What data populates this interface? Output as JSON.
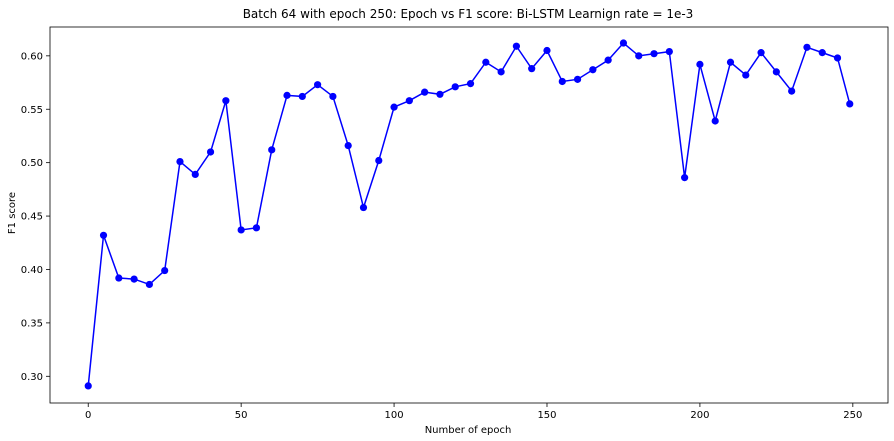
{
  "chart_data": {
    "type": "line",
    "title": "Batch 64 with epoch 250: Epoch vs F1 score: Bi-LSTM Learnign rate = 1e-3",
    "xlabel": "Number of epoch",
    "ylabel": "F1 score",
    "xlim": [
      -12.5,
      261.5
    ],
    "ylim": [
      0.275,
      0.627
    ],
    "xticks": [
      0,
      50,
      100,
      150,
      200,
      250
    ],
    "yticks": [
      0.3,
      0.35,
      0.4,
      0.45,
      0.5,
      0.55,
      0.6
    ],
    "xtick_labels": [
      "0",
      "50",
      "100",
      "150",
      "200",
      "250"
    ],
    "ytick_labels": [
      "0.30",
      "0.35",
      "0.40",
      "0.45",
      "0.50",
      "0.55",
      "0.60"
    ],
    "grid": false,
    "line_color": "#0000ff",
    "series": [
      {
        "x": [
          0,
          5,
          10,
          15,
          20,
          25,
          30,
          35,
          40,
          45,
          50,
          55,
          60,
          65,
          70,
          75,
          80,
          85,
          90,
          95,
          100,
          105,
          110,
          115,
          120,
          125,
          130,
          135,
          140,
          145,
          150,
          155,
          160,
          165,
          170,
          175,
          180,
          185,
          190,
          195,
          200,
          205,
          210,
          215,
          220,
          225,
          230,
          235,
          240,
          245,
          249
        ],
        "values": [
          0.291,
          0.432,
          0.392,
          0.391,
          0.386,
          0.399,
          0.501,
          0.489,
          0.51,
          0.558,
          0.437,
          0.439,
          0.512,
          0.563,
          0.562,
          0.573,
          0.562,
          0.516,
          0.458,
          0.502,
          0.552,
          0.558,
          0.566,
          0.564,
          0.571,
          0.574,
          0.594,
          0.585,
          0.609,
          0.588,
          0.605,
          0.576,
          0.578,
          0.587,
          0.596,
          0.612,
          0.6,
          0.602,
          0.604,
          0.486,
          0.592,
          0.539,
          0.594,
          0.582,
          0.603,
          0.585,
          0.567,
          0.608,
          0.603,
          0.598,
          0.555
        ]
      }
    ]
  }
}
